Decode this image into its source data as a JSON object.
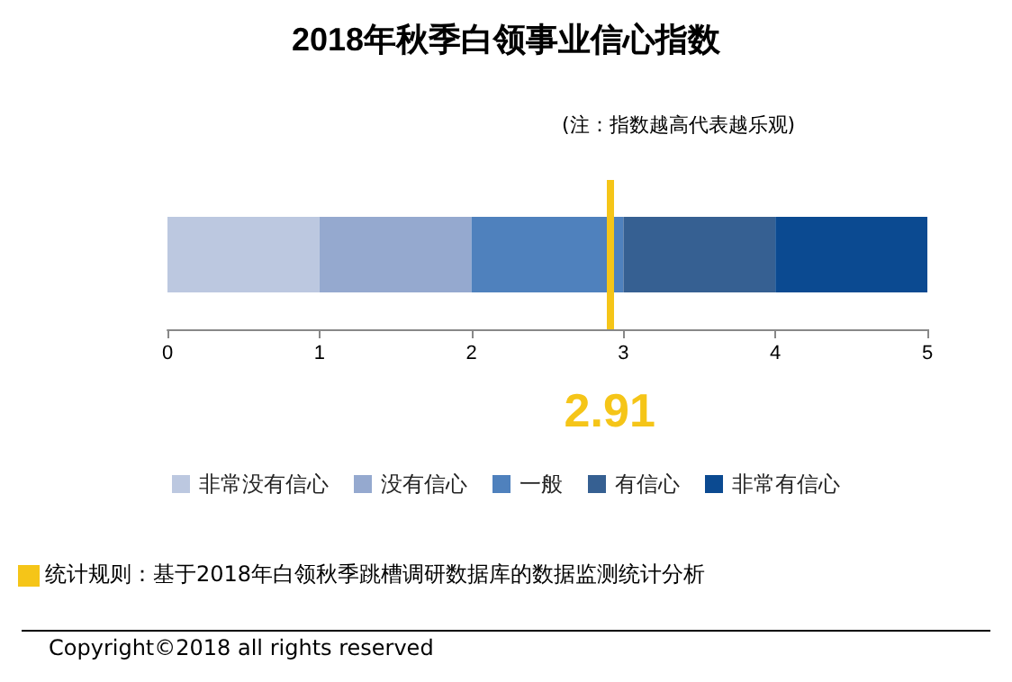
{
  "chart_data": {
    "type": "bar",
    "orientation": "horizontal",
    "stacked": true,
    "title": "2018年秋季白领事业信心指数",
    "categories": [
      null
    ],
    "series": [
      {
        "name": "非常没有信心",
        "color": "#bcc8e0",
        "values": [
          1
        ]
      },
      {
        "name": "没有信心",
        "color": "#95a9cf",
        "values": [
          1
        ]
      },
      {
        "name": "一般",
        "color": "#4f81bd",
        "values": [
          1
        ]
      },
      {
        "name": "有信心",
        "color": "#366092",
        "values": [
          1
        ]
      },
      {
        "name": "非常有信心",
        "color": "#0b4a91",
        "values": [
          1
        ]
      }
    ],
    "xlim": [
      0,
      5
    ],
    "xticks": [
      0,
      1,
      2,
      3,
      4,
      5
    ],
    "grid": false,
    "legend": "bottom",
    "ref_lines": [
      {
        "axis": "x",
        "value": 2.91,
        "label": "2.91",
        "color": "#f5c518"
      }
    ],
    "annotations": [
      "(注：指数越高代表越乐观)",
      "统计规则：基于2018年白领秋季跳槽调研数据库的数据监测统计分析",
      "Copyright©2018 all rights reserved"
    ]
  }
}
